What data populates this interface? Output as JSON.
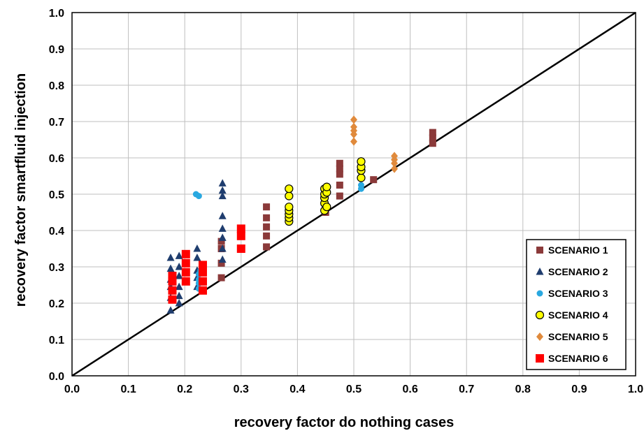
{
  "chart_data": {
    "type": "scatter",
    "xlabel": "recovery factor  do nothing cases",
    "ylabel": "recovery factor  smartfluid injection",
    "xlim": [
      0.0,
      1.0
    ],
    "ylim": [
      0.0,
      1.0
    ],
    "xticks": [
      "0.0",
      "0.1",
      "0.2",
      "0.3",
      "0.4",
      "0.5",
      "0.6",
      "0.7",
      "0.8",
      "0.9",
      "1.0"
    ],
    "yticks": [
      "0.0",
      "0.1",
      "0.2",
      "0.3",
      "0.4",
      "0.5",
      "0.6",
      "0.7",
      "0.8",
      "0.9",
      "1.0"
    ],
    "grid": "vertical and horizontal major gridlines",
    "legend_position": "bottom-right",
    "reference_line": {
      "x": [
        0.0,
        1.0
      ],
      "y": [
        0.0,
        1.0
      ]
    },
    "series": [
      {
        "name": "SCENARIO 1",
        "marker": "square",
        "color": "#8B3A3A",
        "points": [
          [
            0.265,
            0.27
          ],
          [
            0.265,
            0.31
          ],
          [
            0.265,
            0.35
          ],
          [
            0.265,
            0.37
          ],
          [
            0.345,
            0.355
          ],
          [
            0.345,
            0.385
          ],
          [
            0.345,
            0.41
          ],
          [
            0.345,
            0.435
          ],
          [
            0.345,
            0.465
          ],
          [
            0.45,
            0.45
          ],
          [
            0.45,
            0.465
          ],
          [
            0.475,
            0.495
          ],
          [
            0.475,
            0.525
          ],
          [
            0.475,
            0.555
          ],
          [
            0.475,
            0.57
          ],
          [
            0.475,
            0.585
          ],
          [
            0.535,
            0.54
          ],
          [
            0.64,
            0.64
          ],
          [
            0.64,
            0.655
          ],
          [
            0.64,
            0.67
          ]
        ]
      },
      {
        "name": "SCENARIO 2",
        "marker": "triangle",
        "color": "#1F3D6E",
        "points": [
          [
            0.175,
            0.18
          ],
          [
            0.175,
            0.215
          ],
          [
            0.175,
            0.245
          ],
          [
            0.175,
            0.265
          ],
          [
            0.175,
            0.295
          ],
          [
            0.175,
            0.325
          ],
          [
            0.19,
            0.2
          ],
          [
            0.19,
            0.22
          ],
          [
            0.19,
            0.245
          ],
          [
            0.19,
            0.275
          ],
          [
            0.19,
            0.3
          ],
          [
            0.19,
            0.33
          ],
          [
            0.222,
            0.245
          ],
          [
            0.222,
            0.27
          ],
          [
            0.222,
            0.29
          ],
          [
            0.222,
            0.325
          ],
          [
            0.222,
            0.35
          ],
          [
            0.267,
            0.32
          ],
          [
            0.267,
            0.35
          ],
          [
            0.267,
            0.38
          ],
          [
            0.267,
            0.405
          ],
          [
            0.267,
            0.44
          ],
          [
            0.267,
            0.495
          ],
          [
            0.267,
            0.51
          ],
          [
            0.267,
            0.53
          ]
        ]
      },
      {
        "name": "SCENARIO 3",
        "marker": "circle",
        "color": "#29A8E0",
        "points": [
          [
            0.22,
            0.5
          ],
          [
            0.225,
            0.495
          ],
          [
            0.225,
            0.24
          ],
          [
            0.225,
            0.255
          ],
          [
            0.225,
            0.265
          ],
          [
            0.225,
            0.28
          ],
          [
            0.228,
            0.29
          ],
          [
            0.513,
            0.515
          ],
          [
            0.513,
            0.525
          ]
        ]
      },
      {
        "name": "SCENARIO 4",
        "marker": "circle",
        "color": "#FFFF00",
        "points": [
          [
            0.385,
            0.425
          ],
          [
            0.385,
            0.435
          ],
          [
            0.385,
            0.445
          ],
          [
            0.385,
            0.455
          ],
          [
            0.385,
            0.465
          ],
          [
            0.385,
            0.495
          ],
          [
            0.385,
            0.515
          ],
          [
            0.448,
            0.455
          ],
          [
            0.448,
            0.475
          ],
          [
            0.448,
            0.49
          ],
          [
            0.448,
            0.5
          ],
          [
            0.448,
            0.515
          ],
          [
            0.452,
            0.465
          ],
          [
            0.452,
            0.505
          ],
          [
            0.452,
            0.52
          ],
          [
            0.513,
            0.545
          ],
          [
            0.513,
            0.565
          ],
          [
            0.513,
            0.575
          ],
          [
            0.513,
            0.59
          ]
        ]
      },
      {
        "name": "SCENARIO 5",
        "marker": "diamond",
        "color": "#E08A3C",
        "points": [
          [
            0.5,
            0.645
          ],
          [
            0.5,
            0.665
          ],
          [
            0.5,
            0.675
          ],
          [
            0.5,
            0.685
          ],
          [
            0.5,
            0.705
          ],
          [
            0.572,
            0.57
          ],
          [
            0.572,
            0.585
          ],
          [
            0.572,
            0.595
          ],
          [
            0.572,
            0.605
          ]
        ]
      },
      {
        "name": "SCENARIO 6",
        "marker": "rect",
        "color": "#FF0000",
        "points": [
          [
            0.178,
            0.21
          ],
          [
            0.178,
            0.235
          ],
          [
            0.178,
            0.26
          ],
          [
            0.178,
            0.275
          ],
          [
            0.202,
            0.26
          ],
          [
            0.202,
            0.285
          ],
          [
            0.202,
            0.31
          ],
          [
            0.202,
            0.335
          ],
          [
            0.232,
            0.235
          ],
          [
            0.232,
            0.26
          ],
          [
            0.232,
            0.285
          ],
          [
            0.232,
            0.305
          ],
          [
            0.3,
            0.35
          ],
          [
            0.3,
            0.385
          ],
          [
            0.3,
            0.405
          ]
        ]
      }
    ]
  }
}
